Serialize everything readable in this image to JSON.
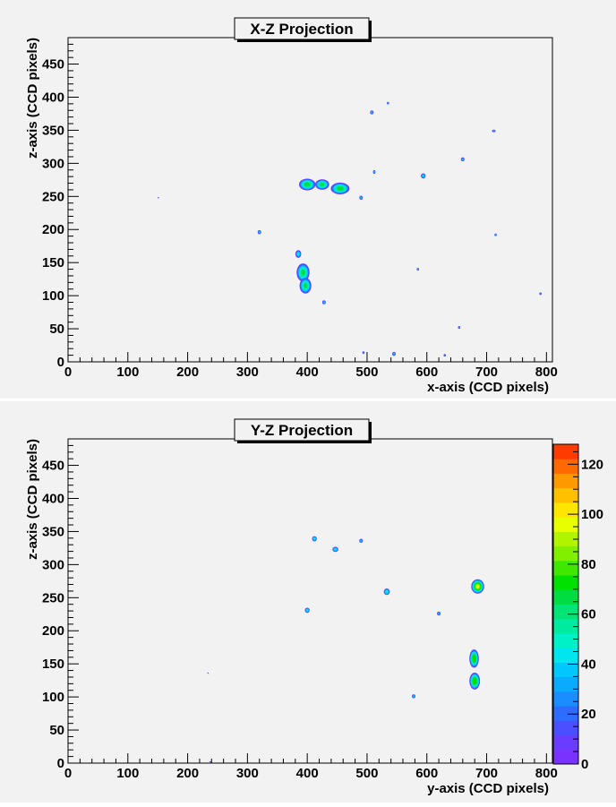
{
  "chart_data": [
    {
      "type": "heatmap",
      "title": "X-Z Projection",
      "xlabel": "x-axis (CCD pixels)",
      "ylabel": "z-axis (CCD pixels)",
      "xlim": [
        0,
        810
      ],
      "ylim": [
        0,
        490
      ],
      "xticks": [
        0,
        100,
        200,
        300,
        400,
        500,
        600,
        700,
        800
      ],
      "yticks": [
        0,
        50,
        100,
        150,
        200,
        250,
        300,
        350,
        400,
        450
      ],
      "spots": [
        {
          "x": 400,
          "z": 268,
          "rx": 14,
          "rz": 9,
          "peak": 75
        },
        {
          "x": 425,
          "z": 268,
          "rx": 12,
          "rz": 8,
          "peak": 72
        },
        {
          "x": 455,
          "z": 262,
          "rx": 16,
          "rz": 9,
          "peak": 74
        },
        {
          "x": 385,
          "z": 163,
          "rx": 5,
          "rz": 6,
          "peak": 50
        },
        {
          "x": 393,
          "z": 135,
          "rx": 11,
          "rz": 14,
          "peak": 72
        },
        {
          "x": 397,
          "z": 115,
          "rx": 10,
          "rz": 12,
          "peak": 70
        },
        {
          "x": 428,
          "z": 90,
          "rx": 3,
          "rz": 3,
          "peak": 45
        },
        {
          "x": 490,
          "z": 248,
          "rx": 3,
          "rz": 3,
          "peak": 45
        },
        {
          "x": 508,
          "z": 377,
          "rx": 3,
          "rz": 3,
          "peak": 45
        },
        {
          "x": 535,
          "z": 391,
          "rx": 2,
          "rz": 2,
          "peak": 40
        },
        {
          "x": 512,
          "z": 287,
          "rx": 2,
          "rz": 3,
          "peak": 45
        },
        {
          "x": 594,
          "z": 281,
          "rx": 4,
          "rz": 4,
          "peak": 50
        },
        {
          "x": 660,
          "z": 306,
          "rx": 3,
          "rz": 3,
          "peak": 45
        },
        {
          "x": 712,
          "z": 349,
          "rx": 3,
          "rz": 2,
          "peak": 40
        },
        {
          "x": 715,
          "z": 192,
          "rx": 2,
          "rz": 2,
          "peak": 40
        },
        {
          "x": 320,
          "z": 196,
          "rx": 3,
          "rz": 3,
          "peak": 45
        },
        {
          "x": 585,
          "z": 140,
          "rx": 2,
          "rz": 2,
          "peak": 40
        },
        {
          "x": 654,
          "z": 52,
          "rx": 2,
          "rz": 2,
          "peak": 35
        },
        {
          "x": 545,
          "z": 12,
          "rx": 3,
          "rz": 3,
          "peak": 45
        },
        {
          "x": 494,
          "z": 14,
          "rx": 2,
          "rz": 2,
          "peak": 35
        },
        {
          "x": 630,
          "z": 10,
          "rx": 2,
          "rz": 2,
          "peak": 35
        },
        {
          "x": 790,
          "z": 103,
          "rx": 2,
          "rz": 2,
          "peak": 35
        },
        {
          "x": 151,
          "z": 248,
          "rx": 1,
          "rz": 1,
          "peak": 15
        }
      ]
    },
    {
      "type": "heatmap",
      "title": "Y-Z Projection",
      "xlabel": "y-axis (CCD pixels)",
      "ylabel": "z-axis (CCD pixels)",
      "xlim": [
        0,
        810
      ],
      "ylim": [
        0,
        490
      ],
      "xticks": [
        0,
        100,
        200,
        300,
        400,
        500,
        600,
        700,
        800
      ],
      "yticks": [
        0,
        50,
        100,
        150,
        200,
        250,
        300,
        350,
        400,
        450
      ],
      "colorbar": {
        "min": 0,
        "max": 128,
        "ticks": [
          0,
          20,
          40,
          60,
          80,
          100,
          120
        ],
        "colors": [
          "#7a33ff",
          "#6a3cff",
          "#4a50ff",
          "#2c6cff",
          "#1a8dff",
          "#0aaaff",
          "#00c8ff",
          "#00e6ee",
          "#00f0c8",
          "#00eaa0",
          "#00e478",
          "#00dd40",
          "#00e000",
          "#40e800",
          "#80f000",
          "#b0f400",
          "#e8ff00",
          "#ffe600",
          "#ffc000",
          "#ff9900",
          "#ff6a00",
          "#ff3c00"
        ]
      },
      "spots": [
        {
          "x": 412,
          "z": 339,
          "rx": 4,
          "rz": 4,
          "peak": 55
        },
        {
          "x": 447,
          "z": 323,
          "rx": 5,
          "rz": 4,
          "peak": 55
        },
        {
          "x": 490,
          "z": 336,
          "rx": 3,
          "rz": 3,
          "peak": 45
        },
        {
          "x": 533,
          "z": 259,
          "rx": 5,
          "rz": 5,
          "peak": 60
        },
        {
          "x": 400,
          "z": 231,
          "rx": 4,
          "rz": 4,
          "peak": 55
        },
        {
          "x": 620,
          "z": 226,
          "rx": 3,
          "rz": 3,
          "peak": 45
        },
        {
          "x": 685,
          "z": 267,
          "rx": 11,
          "rz": 11,
          "peak": 100
        },
        {
          "x": 679,
          "z": 158,
          "rx": 8,
          "rz": 14,
          "peak": 85
        },
        {
          "x": 680,
          "z": 124,
          "rx": 9,
          "rz": 13,
          "peak": 85
        },
        {
          "x": 578,
          "z": 101,
          "rx": 3,
          "rz": 3,
          "peak": 45
        },
        {
          "x": 234,
          "z": 136,
          "rx": 1,
          "rz": 1,
          "peak": 10
        },
        {
          "x": 238,
          "z": 2,
          "rx": 2,
          "rz": 1,
          "peak": 10
        }
      ]
    }
  ]
}
